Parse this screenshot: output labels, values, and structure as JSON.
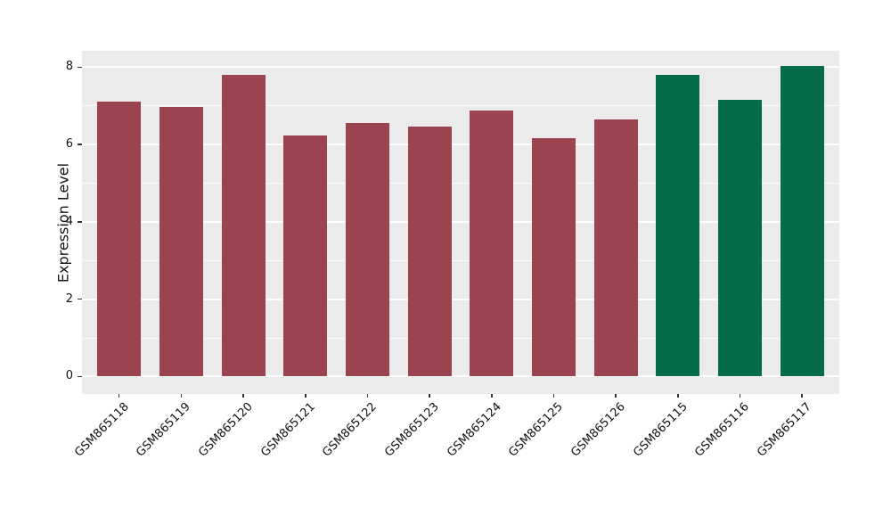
{
  "figure": {
    "background": "#FFFFFF"
  },
  "chart_data": {
    "type": "bar",
    "title": "",
    "xlabel": "",
    "ylabel": "Expression Level",
    "categories": [
      "GSM865118",
      "GSM865119",
      "GSM865120",
      "GSM865121",
      "GSM865122",
      "GSM865123",
      "GSM865124",
      "GSM865125",
      "GSM865126",
      "GSM865115",
      "GSM865116",
      "GSM865117"
    ],
    "values": [
      7.11,
      6.98,
      7.79,
      6.24,
      6.56,
      6.47,
      6.87,
      6.16,
      6.64,
      7.79,
      7.16,
      8.03
    ],
    "groups": [
      "group1",
      "group1",
      "group1",
      "group1",
      "group1",
      "group1",
      "group1",
      "group1",
      "group1",
      "group2",
      "group2",
      "group2"
    ],
    "group_colors": {
      "group1": "#9C4350",
      "group2": "#056B4A"
    },
    "bar_width_fraction": 0.7,
    "ylim": [
      -0.45,
      8.42
    ],
    "xlim": [
      -0.6,
      11.6
    ],
    "yticks": [
      0,
      2,
      4,
      6,
      8
    ],
    "ytick_labels": [
      "0",
      "2",
      "4",
      "6",
      "8"
    ],
    "minor_yticks": [
      1,
      3,
      5,
      7
    ],
    "grid": "major-and-minor-horizontal",
    "legend": "none",
    "plot_background": "#EBEBEB",
    "gridline_color": "#FFFFFF",
    "tick_color": "#333333",
    "text_color": "#111111"
  }
}
